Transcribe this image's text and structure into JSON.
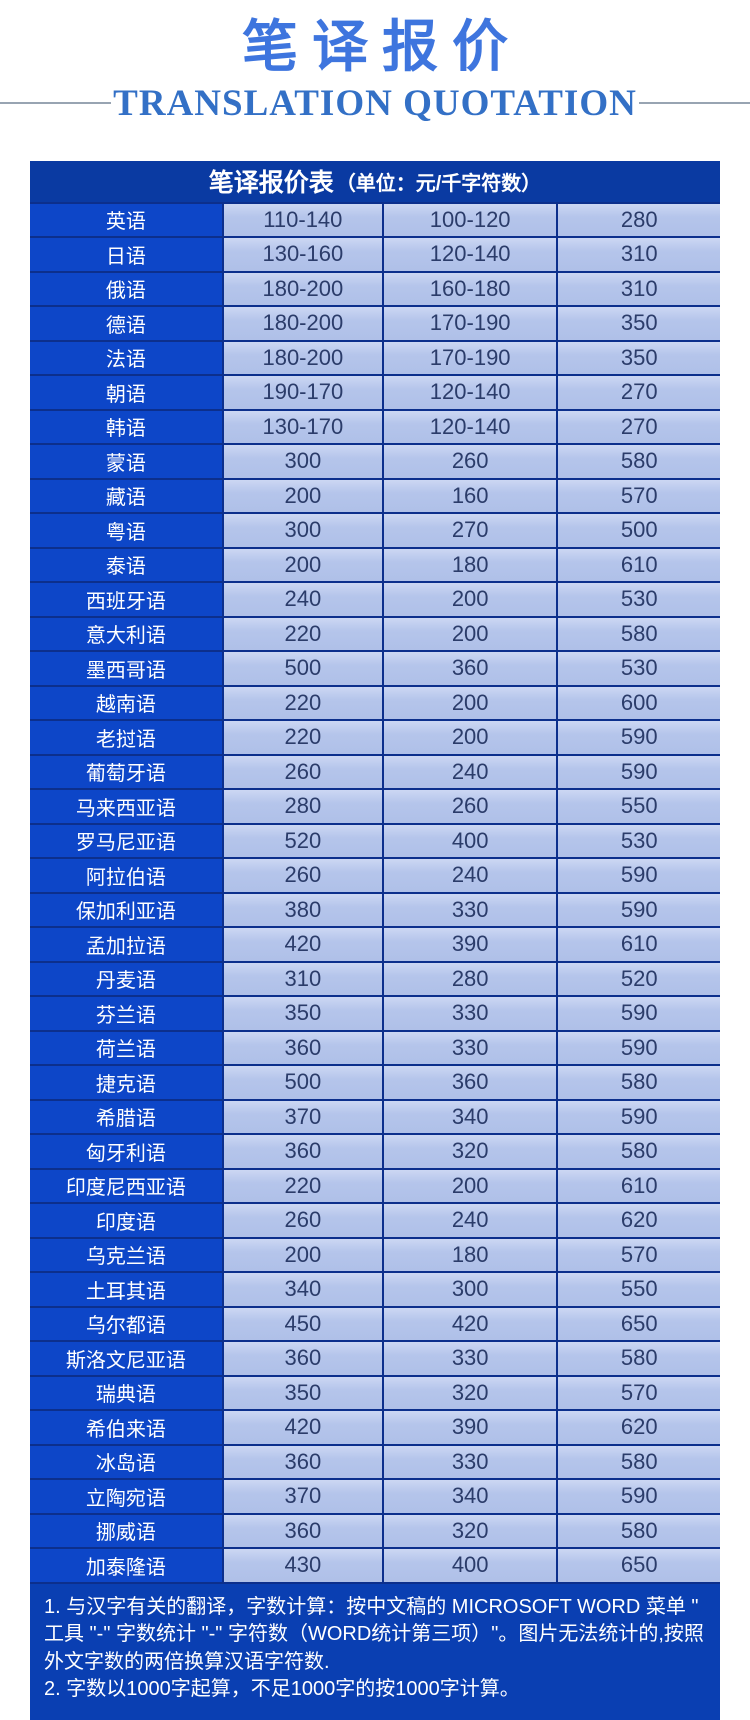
{
  "page": {
    "title": "笔译报价",
    "subtitle": "TRANSLATION QUOTATION"
  },
  "table": {
    "header_title": "笔译报价表",
    "header_unit": "（单位：元/千字符数）",
    "rows": [
      {
        "language": "英语",
        "prices": [
          "110-140",
          "100-120",
          "280"
        ]
      },
      {
        "language": "日语",
        "prices": [
          "130-160",
          "120-140",
          "310"
        ]
      },
      {
        "language": "俄语",
        "prices": [
          "180-200",
          "160-180",
          "310"
        ]
      },
      {
        "language": "德语",
        "prices": [
          "180-200",
          "170-190",
          "350"
        ]
      },
      {
        "language": "法语",
        "prices": [
          "180-200",
          "170-190",
          "350"
        ]
      },
      {
        "language": "朝语",
        "prices": [
          "190-170",
          "120-140",
          "270"
        ]
      },
      {
        "language": "韩语",
        "prices": [
          "130-170",
          "120-140",
          "270"
        ]
      },
      {
        "language": "蒙语",
        "prices": [
          "300",
          "260",
          "580"
        ]
      },
      {
        "language": "藏语",
        "prices": [
          "200",
          "160",
          "570"
        ]
      },
      {
        "language": "粤语",
        "prices": [
          "300",
          "270",
          "500"
        ]
      },
      {
        "language": "泰语",
        "prices": [
          "200",
          "180",
          "610"
        ]
      },
      {
        "language": "西班牙语",
        "prices": [
          "240",
          "200",
          "530"
        ]
      },
      {
        "language": "意大利语",
        "prices": [
          "220",
          "200",
          "580"
        ]
      },
      {
        "language": "墨西哥语",
        "prices": [
          "500",
          "360",
          "530"
        ]
      },
      {
        "language": "越南语",
        "prices": [
          "220",
          "200",
          "600"
        ]
      },
      {
        "language": "老挝语",
        "prices": [
          "220",
          "200",
          "590"
        ]
      },
      {
        "language": "葡萄牙语",
        "prices": [
          "260",
          "240",
          "590"
        ]
      },
      {
        "language": "马来西亚语",
        "prices": [
          "280",
          "260",
          "550"
        ]
      },
      {
        "language": "罗马尼亚语",
        "prices": [
          "520",
          "400",
          "530"
        ]
      },
      {
        "language": "阿拉伯语",
        "prices": [
          "260",
          "240",
          "590"
        ]
      },
      {
        "language": "保加利亚语",
        "prices": [
          "380",
          "330",
          "590"
        ]
      },
      {
        "language": "孟加拉语",
        "prices": [
          "420",
          "390",
          "610"
        ]
      },
      {
        "language": "丹麦语",
        "prices": [
          "310",
          "280",
          "520"
        ]
      },
      {
        "language": "芬兰语",
        "prices": [
          "350",
          "330",
          "590"
        ]
      },
      {
        "language": "荷兰语",
        "prices": [
          "360",
          "330",
          "590"
        ]
      },
      {
        "language": "捷克语",
        "prices": [
          "500",
          "360",
          "580"
        ]
      },
      {
        "language": "希腊语",
        "prices": [
          "370",
          "340",
          "590"
        ]
      },
      {
        "language": "匈牙利语",
        "prices": [
          "360",
          "320",
          "580"
        ]
      },
      {
        "language": "印度尼西亚语",
        "prices": [
          "220",
          "200",
          "610"
        ]
      },
      {
        "language": "印度语",
        "prices": [
          "260",
          "240",
          "620"
        ]
      },
      {
        "language": "乌克兰语",
        "prices": [
          "200",
          "180",
          "570"
        ]
      },
      {
        "language": "土耳其语",
        "prices": [
          "340",
          "300",
          "550"
        ]
      },
      {
        "language": "乌尔都语",
        "prices": [
          "450",
          "420",
          "650"
        ]
      },
      {
        "language": "斯洛文尼亚语",
        "prices": [
          "360",
          "330",
          "580"
        ]
      },
      {
        "language": "瑞典语",
        "prices": [
          "350",
          "320",
          "570"
        ]
      },
      {
        "language": "希伯来语",
        "prices": [
          "420",
          "390",
          "620"
        ]
      },
      {
        "language": "冰岛语",
        "prices": [
          "360",
          "330",
          "580"
        ]
      },
      {
        "language": "立陶宛语",
        "prices": [
          "370",
          "340",
          "590"
        ]
      },
      {
        "language": "挪威语",
        "prices": [
          "360",
          "320",
          "580"
        ]
      },
      {
        "language": "加泰隆语",
        "prices": [
          "430",
          "400",
          "650"
        ]
      }
    ],
    "notes": [
      "1. 与汉字有关的翻译，字数计算：按中文稿的 MICROSOFT WORD 菜单 \" 工具 \"-\" 字数统计 \"-\" 字符数（WORD统计第三项）\"。图片无法统计的,按照外文字数的两倍换算汉语字符数.",
      "2. 字数以1000字起算，不足1000字的按1000字计算。"
    ]
  },
  "colors": {
    "title_blue": "#3e75de",
    "subtitle_blue": "#3370c6",
    "header_navy": "#0a3aa2",
    "language_column_blue": "#0d46c8",
    "cell_light_blue": "#b5c5eb",
    "cell_text_navy": "#2b3c6a",
    "notes_navy": "#0a3fb2",
    "grid_border_navy": "#0c2f8c",
    "divider_gray": "#98a4b2"
  }
}
